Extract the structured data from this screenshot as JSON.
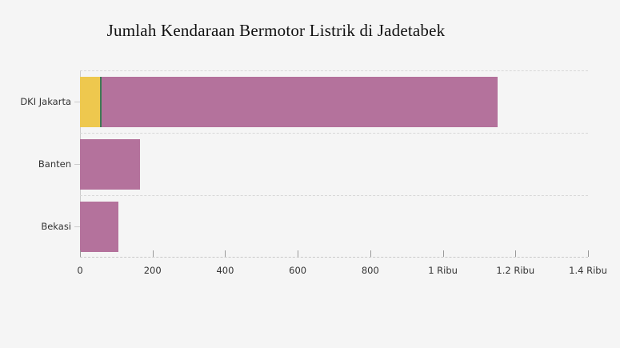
{
  "colors": {
    "background": "#f5f5f5",
    "grid_dash": "#d8d8d8",
    "axis_line": "#cccccc",
    "tick_mark": "#999999",
    "label_text": "#333333",
    "title_text": "#111111"
  },
  "chart_data": {
    "type": "bar",
    "orientation": "horizontal",
    "stacked": true,
    "title": "Jumlah Kendaraan Bermotor Listrik di Jadetabek",
    "categories": [
      "DKI Jakarta",
      "Banten",
      "Bekasi"
    ],
    "series": [
      {
        "name": "segment-yellow",
        "color": "#eec84e",
        "values": [
          55,
          0,
          0
        ]
      },
      {
        "name": "segment-green",
        "color": "#3f7a51",
        "values": [
          5,
          0,
          0
        ]
      },
      {
        "name": "segment-purple",
        "color": "#b4729c",
        "values": [
          1090,
          165,
          105
        ]
      }
    ],
    "totals": [
      1150,
      165,
      105
    ],
    "x_axis": {
      "max": 1400,
      "ticks": [
        {
          "value": 0,
          "label": "0"
        },
        {
          "value": 200,
          "label": "200"
        },
        {
          "value": 400,
          "label": "400"
        },
        {
          "value": 600,
          "label": "600"
        },
        {
          "value": 800,
          "label": "800"
        },
        {
          "value": 1000,
          "label": "1 Ribu"
        },
        {
          "value": 1200,
          "label": "1.2 Ribu"
        },
        {
          "value": 1400,
          "label": "1.4 Ribu"
        }
      ]
    },
    "grid": {
      "horizontal_dashed": true,
      "vertical": false
    },
    "legend": "none"
  }
}
